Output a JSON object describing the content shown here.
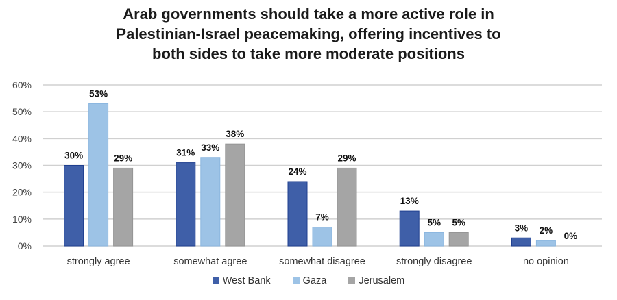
{
  "chart_data": {
    "type": "bar",
    "title_lines": [
      "Arab governments should take a more active role in",
      "Palestinian-Israel peacemaking, offering incentives to",
      "both sides to take more moderate positions"
    ],
    "xlabel": "",
    "ylabel": "",
    "ylim": [
      0,
      60
    ],
    "y_ticks": [
      0,
      10,
      20,
      30,
      40,
      50,
      60
    ],
    "y_tick_labels": [
      "0%",
      "10%",
      "20%",
      "30%",
      "40%",
      "50%",
      "60%"
    ],
    "grid": true,
    "legend_position": "bottom",
    "categories": [
      "strongly agree",
      "somewhat agree",
      "somewhat disagree",
      "strongly disagree",
      "no opinion"
    ],
    "series": [
      {
        "name": "West Bank",
        "color": "#3f5fa8",
        "values": [
          30,
          31,
          24,
          13,
          3
        ],
        "labels": [
          "30%",
          "31%",
          "24%",
          "13%",
          "3%"
        ]
      },
      {
        "name": "Gaza",
        "color": "#9dc3e6",
        "values": [
          53,
          33,
          7,
          5,
          2
        ],
        "labels": [
          "53%",
          "33%",
          "7%",
          "5%",
          "2%"
        ]
      },
      {
        "name": "Jerusalem",
        "color": "#a5a5a5",
        "values": [
          29,
          38,
          29,
          5,
          0
        ],
        "labels": [
          "29%",
          "38%",
          "29%",
          "5%",
          "0%"
        ]
      }
    ]
  }
}
